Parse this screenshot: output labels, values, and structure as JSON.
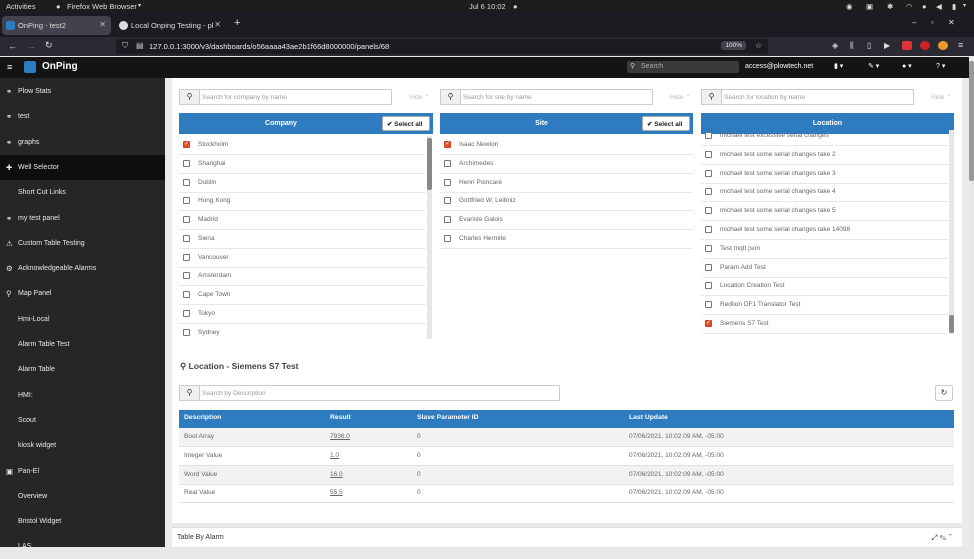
{
  "system": {
    "activities": "Activities",
    "app_name": "Firefox Web Browser",
    "clock": "Jul 6  10:02"
  },
  "browser": {
    "tabs": [
      {
        "label": "OnPing - test2",
        "active": true
      },
      {
        "label": "Local Onping Testing - pl",
        "active": false
      }
    ],
    "url": "127.0.0.1:3000/v3/dashboards/o56aaaa43ae2b1f66d8000000/panels/68",
    "zoom": "100%"
  },
  "app": {
    "brand": "OnPing",
    "search_placeholder": "Search",
    "user_email": "access@plowtech.net"
  },
  "sidebar": {
    "items": [
      {
        "label": "Plow Stats",
        "icon": "link-icon"
      },
      {
        "label": "test",
        "icon": "link-icon"
      },
      {
        "label": "graphs",
        "icon": "link-icon"
      },
      {
        "label": "Well Selector",
        "icon": "crosshair-icon",
        "selected": true
      },
      {
        "label": "Short Cut Links",
        "icon": ""
      },
      {
        "label": "my test panel",
        "icon": "link-icon"
      },
      {
        "label": "Custom Table Testing",
        "icon": "warning-icon"
      },
      {
        "label": "Acknowledgeable Alarms",
        "icon": "gear-icon"
      },
      {
        "label": "Map Panel",
        "icon": "map-marker-icon"
      },
      {
        "label": "Hmi-Local",
        "icon": ""
      },
      {
        "label": "Alarm Table Test",
        "icon": ""
      },
      {
        "label": "Alarm Table",
        "icon": ""
      },
      {
        "label": "HMI:",
        "icon": ""
      },
      {
        "label": "Scout",
        "icon": ""
      },
      {
        "label": "kiosk widget",
        "icon": ""
      },
      {
        "label": "Pan-El",
        "icon": "window-icon"
      },
      {
        "label": "Overview",
        "icon": ""
      },
      {
        "label": "Bristol Widget",
        "icon": ""
      },
      {
        "label": "LAS",
        "icon": ""
      }
    ]
  },
  "selector": {
    "hide_label": "Hide",
    "select_all_label": "Select all",
    "company": {
      "placeholder": "Search for company by name",
      "header": "Company",
      "items": [
        {
          "label": "Stockholm",
          "checked": true
        },
        {
          "label": "Shanghai",
          "checked": false
        },
        {
          "label": "Dublin",
          "checked": false
        },
        {
          "label": "Hong Kong",
          "checked": false
        },
        {
          "label": "Madrid",
          "checked": false
        },
        {
          "label": "Siena",
          "checked": false
        },
        {
          "label": "Vancouver",
          "checked": false
        },
        {
          "label": "Amsterdam",
          "checked": false
        },
        {
          "label": "Cape Town",
          "checked": false
        },
        {
          "label": "Tokyo",
          "checked": false
        },
        {
          "label": "Sydney",
          "checked": false
        }
      ]
    },
    "site": {
      "placeholder": "Search for site by name",
      "header": "Site",
      "items": [
        {
          "label": "Isaac Newton",
          "checked": true
        },
        {
          "label": "Archimedes",
          "checked": false
        },
        {
          "label": "Henri Poincaré",
          "checked": false
        },
        {
          "label": "Gottfried W. Leibniz",
          "checked": false
        },
        {
          "label": "Evariste Galois",
          "checked": false
        },
        {
          "label": "Charles Hermite",
          "checked": false
        }
      ]
    },
    "location": {
      "placeholder": "Search for location by name",
      "header": "Location",
      "items": [
        {
          "label": "michael test excessive serial changes",
          "checked": false
        },
        {
          "label": "michael test some serial changes take 2",
          "checked": false
        },
        {
          "label": "michael test some serial changes take 3",
          "checked": false
        },
        {
          "label": "michael test some serial changes take 4",
          "checked": false
        },
        {
          "label": "michael test some serial changes take 5",
          "checked": false
        },
        {
          "label": "michael test some serial changes take 14098",
          "checked": false
        },
        {
          "label": "Test mqtt json",
          "checked": false
        },
        {
          "label": "Param Add Test",
          "checked": false
        },
        {
          "label": "Location Creation Test",
          "checked": false
        },
        {
          "label": "Redlion DF1 Translator Test",
          "checked": false
        },
        {
          "label": "Siemens S7 Test",
          "checked": true
        }
      ]
    }
  },
  "location_detail": {
    "title": "Location - Siemens S7 Test",
    "search_placeholder": "Search by Description",
    "columns": [
      "Description",
      "Result",
      "Slave Parameter ID",
      "Last Update"
    ],
    "rows": [
      {
        "description": "Bool Array",
        "result": "7936.0",
        "slave_id": "0",
        "last_update": "07/06/2021, 10:02:09 AM, -05:00"
      },
      {
        "description": "Integer Value",
        "result": "1.0",
        "slave_id": "0",
        "last_update": "07/06/2021, 10:02:09 AM, -05:00"
      },
      {
        "description": "Word Value",
        "result": "16.0",
        "slave_id": "0",
        "last_update": "07/06/2021, 10:02:09 AM, -05:00"
      },
      {
        "description": "Real Value",
        "result": "55.5",
        "slave_id": "0",
        "last_update": "07/06/2021, 10:02:09 AM, -05:00"
      }
    ]
  },
  "footer": {
    "title": "Table By Alarm"
  },
  "colors": {
    "accent_blue": "#2e7bbf",
    "checked_orange": "#e0522b",
    "sidebar_bg": "#262626"
  }
}
